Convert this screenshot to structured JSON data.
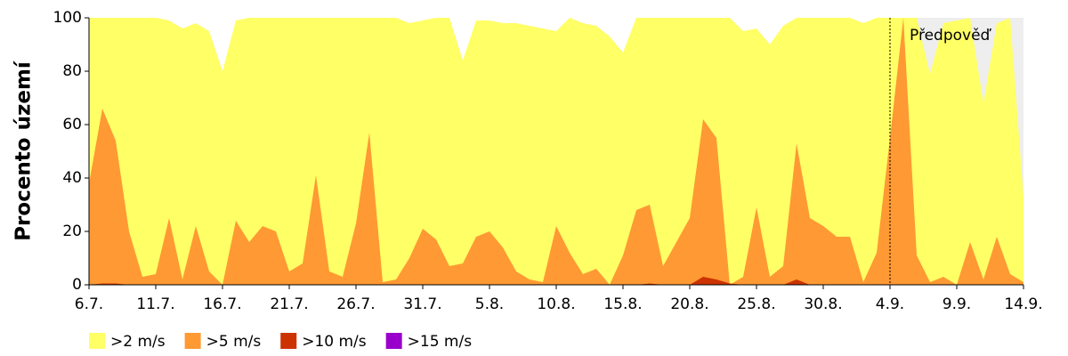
{
  "chart_data": {
    "type": "area",
    "y_label": "Procento území",
    "categories": [
      "6.7.",
      null,
      null,
      null,
      null,
      "11.7.",
      null,
      null,
      null,
      null,
      "16.7.",
      null,
      null,
      null,
      null,
      "21.7.",
      null,
      null,
      null,
      null,
      "26.7.",
      null,
      null,
      null,
      null,
      "31.7.",
      null,
      null,
      null,
      null,
      "5.8.",
      null,
      null,
      null,
      null,
      "10.8.",
      null,
      null,
      null,
      null,
      "15.8.",
      null,
      null,
      null,
      null,
      "20.8.",
      null,
      null,
      null,
      null,
      "25.8.",
      null,
      null,
      null,
      null,
      "30.8.",
      null,
      null,
      null,
      null,
      "4.9.",
      null,
      null,
      null,
      null,
      "9.9.",
      null,
      null,
      null,
      null,
      "14.9."
    ],
    "series": [
      {
        "name": ">2 m/s",
        "color": "#ffff66",
        "values": [
          100,
          100,
          100,
          100,
          100,
          100,
          99,
          96,
          98,
          95,
          80,
          99,
          100,
          100,
          100,
          100,
          100,
          100,
          100,
          100,
          100,
          100,
          100,
          100,
          98,
          99,
          100,
          100,
          84,
          99,
          99,
          98,
          98,
          97,
          96,
          95,
          100,
          98,
          97,
          93,
          87,
          100,
          100,
          100,
          100,
          100,
          100,
          100,
          100,
          95,
          96,
          90,
          97,
          100,
          100,
          100,
          100,
          100,
          98,
          100,
          100,
          100,
          100,
          79,
          98,
          99,
          100,
          68,
          98,
          100,
          33
        ]
      },
      {
        "name": ">5 m/s",
        "color": "#ff9933",
        "values": [
          38,
          66,
          54,
          20,
          3,
          4,
          25,
          2,
          22,
          5,
          0,
          24,
          16,
          22,
          20,
          5,
          8,
          41,
          5,
          3,
          23,
          57,
          1,
          2,
          10,
          21,
          17,
          7,
          8,
          18,
          20,
          14,
          5,
          2,
          1,
          22,
          12,
          4,
          6,
          0,
          11,
          28,
          30,
          7,
          16,
          25,
          62,
          55,
          0,
          3,
          29,
          3,
          7,
          53,
          25,
          22,
          18,
          18,
          1,
          12,
          55,
          100,
          11,
          1,
          3,
          0,
          16,
          2,
          18,
          4,
          1
        ]
      },
      {
        "name": ">10 m/s",
        "color": "#cc3300",
        "values": [
          0,
          0.5,
          0.5,
          0,
          0,
          0,
          0,
          0,
          0,
          0,
          0,
          0,
          0,
          0,
          0,
          0,
          0,
          0,
          0,
          0,
          0,
          0,
          0,
          0,
          0,
          0,
          0,
          0,
          0,
          0,
          0,
          0,
          0,
          0,
          0,
          0,
          0,
          0,
          0,
          0,
          0,
          0,
          0.5,
          0,
          0,
          0,
          3,
          2,
          0.5,
          0,
          0,
          0,
          0,
          2,
          0,
          0,
          0,
          0,
          0,
          0,
          0,
          0,
          0,
          0,
          0,
          0,
          0,
          0,
          0,
          0,
          0
        ]
      },
      {
        "name": ">15 m/s",
        "color": "#9900cc",
        "values": [
          0,
          0,
          0,
          0,
          0,
          0,
          0,
          0,
          0,
          0,
          0,
          0,
          0,
          0,
          0,
          0,
          0,
          0,
          0,
          0,
          0,
          0,
          0,
          0,
          0,
          0,
          0,
          0,
          0,
          0,
          0,
          0,
          0,
          0,
          0,
          0,
          0,
          0,
          0,
          0,
          0,
          0,
          0,
          0,
          0,
          0,
          0,
          0,
          0,
          0,
          0,
          0,
          0,
          0,
          0,
          0,
          0,
          0,
          0,
          0,
          0,
          0,
          0,
          0,
          0,
          0,
          0,
          0,
          0,
          0,
          0
        ]
      }
    ],
    "ylim": [
      0,
      100
    ],
    "yticks": [
      0,
      20,
      40,
      60,
      80,
      100
    ],
    "forecast": {
      "text": "Předpověď",
      "x": "4.9.",
      "color": "#eeeeee"
    },
    "legend": "bottom-left"
  }
}
